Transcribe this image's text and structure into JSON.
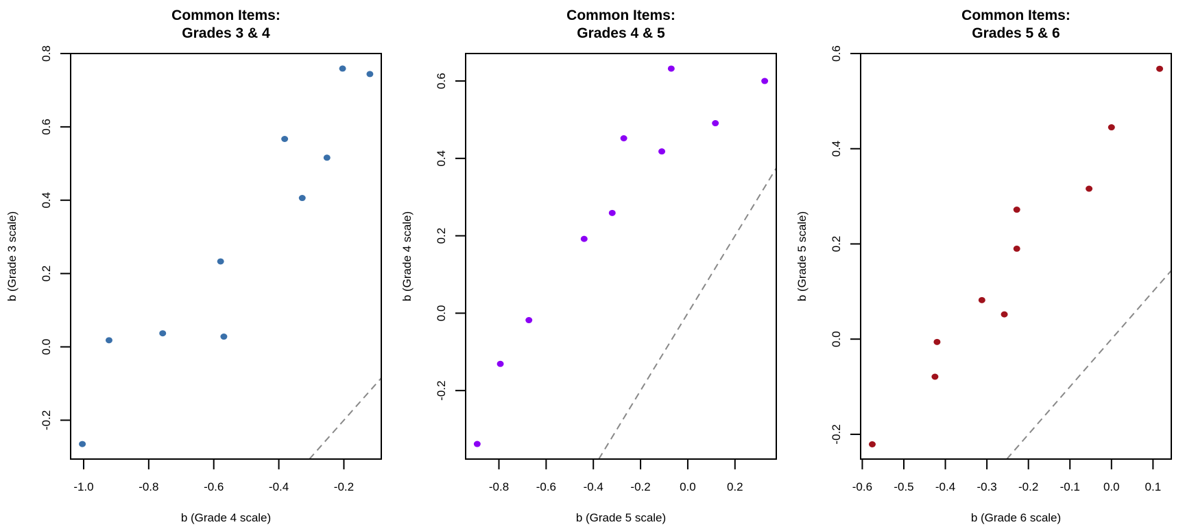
{
  "chart_data": [
    {
      "type": "scatter",
      "title": [
        "Common Items:",
        "Grades 3 & 4"
      ],
      "xlabel": "b (Grade 4 scale)",
      "ylabel": "b (Grade 3 scale)",
      "color": "#3A70AA",
      "xlim": [
        -1.04,
        -0.085
      ],
      "ylim": [
        -0.306,
        0.8
      ],
      "xticks": [
        -1.0,
        -0.8,
        -0.6,
        -0.4,
        -0.2
      ],
      "xtick_labels": [
        "-1.0",
        "-0.8",
        "-0.6",
        "-0.4",
        "-0.2"
      ],
      "yticks": [
        -0.2,
        0.0,
        0.2,
        0.4,
        0.6,
        0.8
      ],
      "ytick_labels": [
        "-0.2",
        "0.0",
        "0.2",
        "0.4",
        "0.6",
        "0.8"
      ],
      "reference_line": "y = x (dashed gray)",
      "points": [
        {
          "x": -1.004,
          "y": -0.265
        },
        {
          "x": -0.922,
          "y": 0.018
        },
        {
          "x": -0.757,
          "y": 0.037
        },
        {
          "x": -0.579,
          "y": 0.233
        },
        {
          "x": -0.569,
          "y": 0.028
        },
        {
          "x": -0.382,
          "y": 0.567
        },
        {
          "x": -0.328,
          "y": 0.406
        },
        {
          "x": -0.252,
          "y": 0.516
        },
        {
          "x": -0.204,
          "y": 0.759
        },
        {
          "x": -0.12,
          "y": 0.744
        }
      ]
    },
    {
      "type": "scatter",
      "title": [
        "Common Items:",
        "Grades 4 & 5"
      ],
      "xlabel": "b (Grade 5 scale)",
      "ylabel": "b (Grade 4 scale)",
      "color": "#8B00F5",
      "xlim": [
        -0.941,
        0.375
      ],
      "ylim": [
        -0.377,
        0.671
      ],
      "xticks": [
        -0.8,
        -0.6,
        -0.4,
        -0.2,
        0.0,
        0.2
      ],
      "xtick_labels": [
        "-0.8",
        "-0.6",
        "-0.4",
        "-0.2",
        "0.0",
        "0.2"
      ],
      "yticks": [
        -0.2,
        0.0,
        0.2,
        0.4,
        0.6
      ],
      "ytick_labels": [
        "-0.2",
        "0.0",
        "0.2",
        "0.4",
        "0.6"
      ],
      "reference_line": "y = x (dashed gray)",
      "points": [
        {
          "x": -0.892,
          "y": -0.338
        },
        {
          "x": -0.794,
          "y": -0.131
        },
        {
          "x": -0.673,
          "y": -0.018
        },
        {
          "x": -0.439,
          "y": 0.192
        },
        {
          "x": -0.32,
          "y": 0.259
        },
        {
          "x": -0.271,
          "y": 0.452
        },
        {
          "x": -0.11,
          "y": 0.418
        },
        {
          "x": -0.07,
          "y": 0.632
        },
        {
          "x": 0.117,
          "y": 0.491
        },
        {
          "x": 0.326,
          "y": 0.6
        }
      ]
    },
    {
      "type": "scatter",
      "title": [
        "Common Items:",
        "Grades 5 & 6"
      ],
      "xlabel": "b (Grade 6 scale)",
      "ylabel": "b (Grade 5 scale)",
      "color": "#A0121C",
      "xlim": [
        -0.604,
        0.144
      ],
      "ylim": [
        -0.252,
        0.6
      ],
      "xticks": [
        -0.6,
        -0.5,
        -0.4,
        -0.3,
        -0.2,
        -0.1,
        0.0,
        0.1
      ],
      "xtick_labels": [
        "-0.6",
        "-0.5",
        "-0.4",
        "-0.3",
        "-0.2",
        "-0.1",
        "0.0",
        "0.1"
      ],
      "yticks": [
        -0.2,
        0.0,
        0.2,
        0.4,
        0.6
      ],
      "ytick_labels": [
        "-0.2",
        "0.0",
        "0.2",
        "0.4",
        "0.6"
      ],
      "reference_line": "y = x (dashed gray)",
      "points": [
        {
          "x": -0.576,
          "y": -0.221
        },
        {
          "x": -0.425,
          "y": -0.079
        },
        {
          "x": -0.42,
          "y": -0.006
        },
        {
          "x": -0.312,
          "y": 0.082
        },
        {
          "x": -0.258,
          "y": 0.052
        },
        {
          "x": -0.228,
          "y": 0.272
        },
        {
          "x": -0.228,
          "y": 0.19
        },
        {
          "x": -0.054,
          "y": 0.316
        },
        {
          "x": 0.0,
          "y": 0.445
        },
        {
          "x": 0.116,
          "y": 0.568
        }
      ]
    }
  ]
}
